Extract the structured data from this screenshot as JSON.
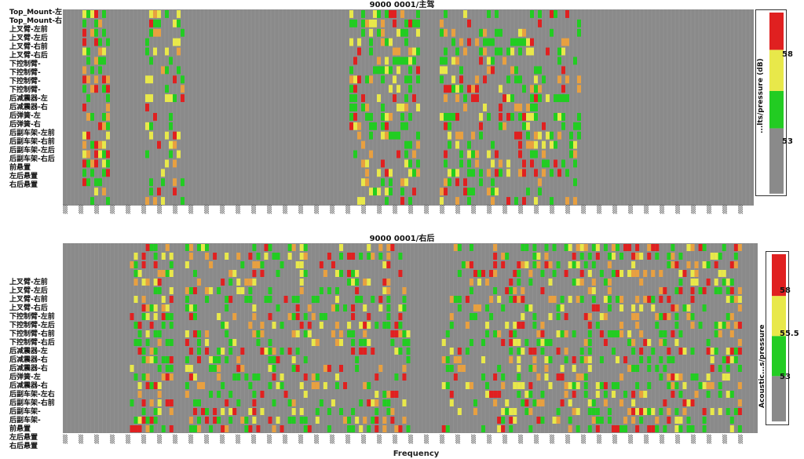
{
  "colors": {
    "background": "#8a8a8a",
    "grid": "#9c9c9c",
    "green": "#22cc22",
    "yellow": "#e8e84a",
    "orange": "#e8a040",
    "red": "#e02020"
  },
  "chart_data": [
    {
      "type": "heatmap",
      "title": "9000 0001/主驾",
      "xlabel": "",
      "rows": [
        "Top_Mount-左",
        "Top_Mount-右",
        "上叉臂-左前",
        "上叉臂-左后",
        "上叉臂-右前",
        "上叉臂-右后",
        "下控制臂-",
        "下控制臂-",
        "下控制臂-",
        "下控制臂-",
        "后减震器-左",
        "后减震器-右",
        "后弹簧-左",
        "后弹簧-右",
        "后副车架-左前",
        "后副车架-右前",
        "后副车架-左后",
        "后副车架-右后",
        "前悬置",
        "左后悬置",
        "右后悬置"
      ],
      "colorbar": {
        "title": "...lts/pressure (dB)",
        "ticks": [
          "58",
          "53"
        ]
      },
      "seed": 7,
      "bands": [
        [
          0.03,
          0.07,
          0.9
        ],
        [
          0.12,
          0.18,
          0.5
        ],
        [
          0.42,
          0.52,
          0.7
        ],
        [
          0.55,
          0.75,
          0.6
        ]
      ]
    },
    {
      "type": "heatmap",
      "title": "9000 0001/右后",
      "xlabel": "Frequency",
      "rows": [
        "",
        "",
        "上叉臂-左前",
        "上叉臂-左后",
        "上叉臂-右前",
        "上叉臂-右后",
        "下控制臂-左前",
        "下控制臂-左后",
        "下控制臂-右前",
        "下控制臂-右后",
        "后减震器-左",
        "后减震器-右",
        "后减震器-右",
        "后弹簧-左",
        "后减震器-右",
        "后副车架-左右",
        "后副车架-右前",
        "后副车架-",
        "后副车架-",
        "前悬置",
        "左后悬置",
        "右后悬置"
      ],
      "colorbar": {
        "title": "Acoustic...s/pressure",
        "ticks": [
          "58",
          "55.5",
          "53"
        ]
      },
      "seed": 13,
      "bands": [
        [
          0.1,
          0.16,
          0.9
        ],
        [
          0.18,
          0.5,
          0.6
        ],
        [
          0.55,
          0.62,
          0.4
        ],
        [
          0.62,
          0.98,
          0.7
        ]
      ]
    }
  ],
  "top": {
    "row_labels_extra": [
      "Top_Mount-左",
      "Top_Mount-右"
    ]
  }
}
